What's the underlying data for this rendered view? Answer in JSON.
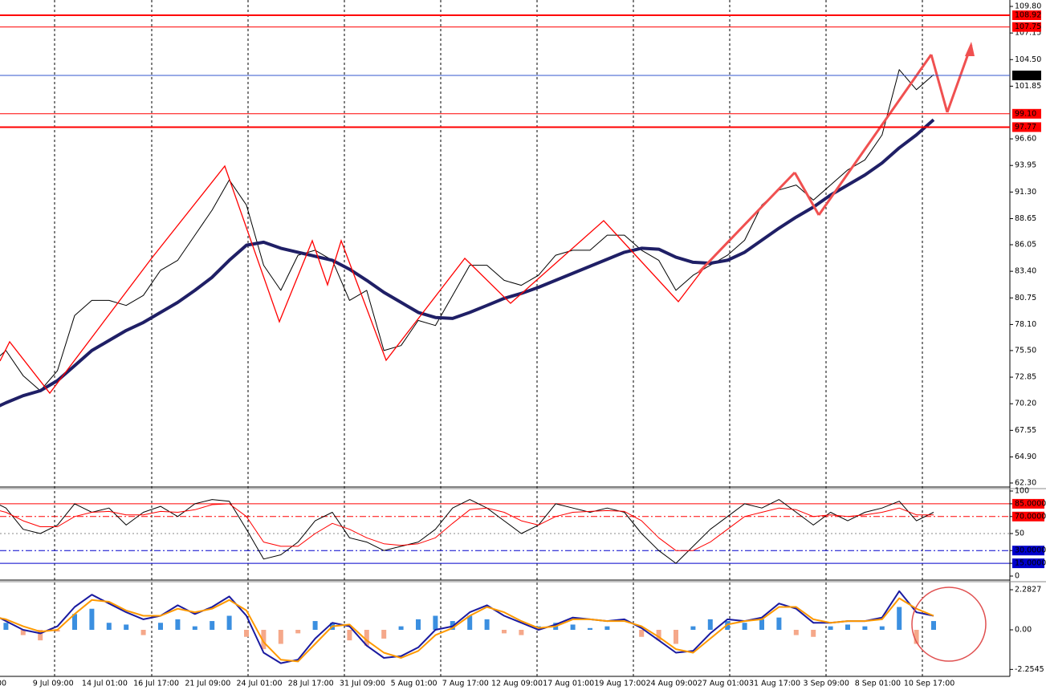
{
  "chart_data": [
    {
      "type": "line",
      "ylim": [
        61.98,
        110.44
      ],
      "yticks": [
        {
          "value": 109.8,
          "label": "109.80"
        },
        107.15,
        {
          "value": 104.5,
          "label": "104.50"
        },
        101.85,
        {
          "value": 96.6,
          "label": "96.60"
        },
        93.95,
        {
          "value": 91.3,
          "label": "91.30"
        },
        88.65,
        86.05,
        {
          "value": 83.4,
          "label": "83.40"
        },
        80.75,
        {
          "value": 78.1,
          "label": "78.10"
        },
        {
          "value": 75.5,
          "label": "75.50"
        },
        72.85,
        {
          "value": 70.2,
          "label": "70.20"
        },
        67.55,
        {
          "value": 64.9,
          "label": "64.90"
        },
        {
          "value": 62.3,
          "label": "62.30"
        }
      ],
      "hlines": [
        {
          "value": 108.92,
          "color": "#ff0000",
          "label_bg": "#ff0000"
        },
        {
          "value": 107.75,
          "color": "#ff0000",
          "label_bg": "#ff0000"
        },
        {
          "value": 102.92,
          "color": "#3355cc",
          "label_bg": "#000000"
        },
        {
          "value": 99.1,
          "label": "99.10",
          "color": "#ff0000",
          "label_bg": "#ff0000"
        },
        {
          "value": 97.77,
          "color": "#ff0000",
          "label_bg": "#ff0000"
        }
      ],
      "series": [
        {
          "color": "#000000",
          "line_width": 1,
          "values": [
            74,
            75.5,
            73,
            71.5,
            73.5,
            79,
            80.5,
            80.5,
            80,
            81,
            83.5,
            84.5,
            87,
            89.5,
            92.5,
            90,
            84,
            81.5,
            85,
            85.5,
            84.5,
            80.5,
            81.5,
            75.5,
            76,
            78.5,
            78,
            81,
            84,
            84,
            82.5,
            82,
            83,
            85,
            85.5,
            85.5,
            87,
            87,
            85.5,
            84.5,
            81.5,
            83,
            84,
            85,
            86.5,
            90,
            91.5,
            92,
            90.5,
            92,
            93.5,
            94.5,
            97,
            103.5,
            101.5,
            103,
            null
          ]
        },
        {
          "color": "#1f1f66",
          "line_width": 4,
          "values": [
            69.5,
            70.3,
            71,
            71.5,
            72.5,
            74,
            75.5,
            76.5,
            77.5,
            78.3,
            79.3,
            80.3,
            81.5,
            82.8,
            84.5,
            86,
            86.3,
            85.7,
            85.3,
            84.9,
            84.5,
            83.6,
            82.5,
            81.3,
            80.3,
            79.3,
            78.8,
            78.7,
            79.3,
            80,
            80.7,
            81.2,
            81.8,
            82.5,
            83.2,
            83.9,
            84.6,
            85.3,
            85.7,
            85.6,
            84.8,
            84.3,
            84.2,
            84.5,
            85.3,
            86.5,
            87.7,
            88.8,
            89.8,
            91,
            92,
            93,
            94.2,
            95.7,
            97,
            98.5,
            null
          ]
        }
      ]
    },
    {
      "type": "line",
      "ylim": [
        0,
        100
      ],
      "yticks": [
        100,
        {
          "value": 85,
          "label": "85.0000"
        },
        {
          "value": 70,
          "label": "70.0000"
        },
        50,
        {
          "value": 30,
          "label": "30.0000"
        },
        {
          "value": 15,
          "label": "15.0000"
        },
        0
      ],
      "tick_line_colors": [
        null,
        "#ff0000",
        "#ff0000",
        "#888888",
        "#0000cc",
        "#0000cc",
        null
      ],
      "series": [
        {
          "color": "#000000",
          "line_width": 1,
          "values": [
            90,
            80,
            55,
            50,
            60,
            85,
            75,
            80,
            60,
            75,
            82,
            70,
            85,
            90,
            88,
            55,
            20,
            25,
            40,
            65,
            75,
            45,
            40,
            30,
            35,
            40,
            55,
            80,
            90,
            80,
            65,
            50,
            60,
            85,
            80,
            75,
            80,
            75,
            50,
            30,
            15,
            35,
            55,
            70,
            85,
            80,
            90,
            75,
            60,
            75,
            65,
            75,
            80,
            88,
            65,
            75,
            null
          ]
        },
        {
          "color": "#ff0000",
          "line_width": 1,
          "values": [
            80,
            75,
            65,
            58,
            58,
            70,
            75,
            76,
            72,
            72,
            76,
            75,
            78,
            84,
            85,
            70,
            40,
            35,
            35,
            50,
            62,
            55,
            45,
            38,
            36,
            38,
            45,
            62,
            78,
            80,
            75,
            65,
            60,
            70,
            75,
            76,
            77,
            76,
            65,
            45,
            30,
            30,
            40,
            55,
            70,
            75,
            80,
            78,
            70,
            72,
            70,
            72,
            75,
            80,
            72,
            72,
            null
          ]
        }
      ]
    },
    {
      "type": "combo",
      "ylim": [
        -2.65,
        2.65
      ],
      "yticks": [
        2.2827,
        {
          "value": 0,
          "label": "0.00"
        },
        -2.2545
      ],
      "categories": [
        "00",
        null,
        null,
        "9 Jul 09:00",
        null,
        null,
        "14 Jul 01:00",
        null,
        null,
        "16 Jul 17:00",
        null,
        null,
        "21 Jul 09:00",
        null,
        null,
        "24 Jul 01:00",
        null,
        null,
        "28 Jul 17:00",
        null,
        null,
        "31 Jul 09:00",
        null,
        null,
        "5 Aug 01:00",
        null,
        null,
        "7 Aug 17:00",
        null,
        null,
        "12 Aug 09:00",
        null,
        null,
        "17 Aug 01:00",
        null,
        null,
        "19 Aug 17:00",
        null,
        null,
        "24 Aug 09:00",
        null,
        null,
        "27 Aug 01:00",
        null,
        null,
        "31 Aug 17:00",
        null,
        null,
        "3 Sep 09:00",
        null,
        null,
        "8 Sep 01:00",
        null,
        null,
        "10 Sep 17:00",
        null,
        null
      ],
      "series": [
        {
          "kind": "bar",
          "color": "#3b8fe0",
          "negative_color": "#f5a88a",
          "values": [
            0.6,
            0.4,
            -0.3,
            -0.6,
            -0.1,
            0.9,
            1.2,
            0.4,
            0.3,
            -0.3,
            0.4,
            0.6,
            0.2,
            0.5,
            0.8,
            -0.4,
            -1.1,
            -0.8,
            -0.2,
            0.5,
            0.4,
            -0.6,
            -0.9,
            -0.5,
            0.2,
            0.6,
            0.8,
            0.5,
            0.8,
            0.6,
            -0.2,
            -0.3,
            0.2,
            0.4,
            0.3,
            0.1,
            0.2,
            0,
            -0.4,
            -0.6,
            -0.8,
            0.2,
            0.6,
            0.5,
            0.4,
            0.6,
            0.7,
            -0.3,
            -0.4,
            0.2,
            0.3,
            0.2,
            0.2,
            1.3,
            -0.8,
            0.5,
            null
          ]
        },
        {
          "kind": "line",
          "color": "#1a1aa0",
          "line_width": 2,
          "values": [
            1.0,
            0.5,
            0,
            -0.2,
            0.2,
            1.3,
            2.0,
            1.5,
            1.0,
            0.6,
            0.8,
            1.4,
            0.9,
            1.3,
            1.9,
            0.8,
            -1.3,
            -1.9,
            -1.7,
            -0.5,
            0.4,
            0.2,
            -0.9,
            -1.6,
            -1.5,
            -1.0,
            0,
            0.2,
            1.0,
            1.4,
            0.8,
            0.4,
            0,
            0.3,
            0.7,
            0.6,
            0.5,
            0.6,
            0.1,
            -0.6,
            -1.3,
            -1.2,
            -0.2,
            0.6,
            0.5,
            0.7,
            1.5,
            1.2,
            0.4,
            0.4,
            0.5,
            0.5,
            0.7,
            2.2,
            1.0,
            0.8,
            null
          ]
        },
        {
          "kind": "line",
          "color": "#ff9900",
          "line_width": 2,
          "values": [
            0.8,
            0.6,
            0.2,
            -0.1,
            0.0,
            0.9,
            1.7,
            1.6,
            1.1,
            0.8,
            0.8,
            1.2,
            1.0,
            1.2,
            1.7,
            1.1,
            -0.7,
            -1.7,
            -1.8,
            -0.8,
            0.2,
            0.3,
            -0.6,
            -1.3,
            -1.6,
            -1.2,
            -0.3,
            0.1,
            0.8,
            1.3,
            1.0,
            0.5,
            0.1,
            0.2,
            0.6,
            0.6,
            0.5,
            0.5,
            0.2,
            -0.4,
            -1.1,
            -1.3,
            -0.5,
            0.3,
            0.5,
            0.6,
            1.3,
            1.3,
            0.6,
            0.4,
            0.5,
            0.5,
            0.6,
            1.8,
            1.2,
            0.8,
            null
          ]
        }
      ]
    }
  ]
}
